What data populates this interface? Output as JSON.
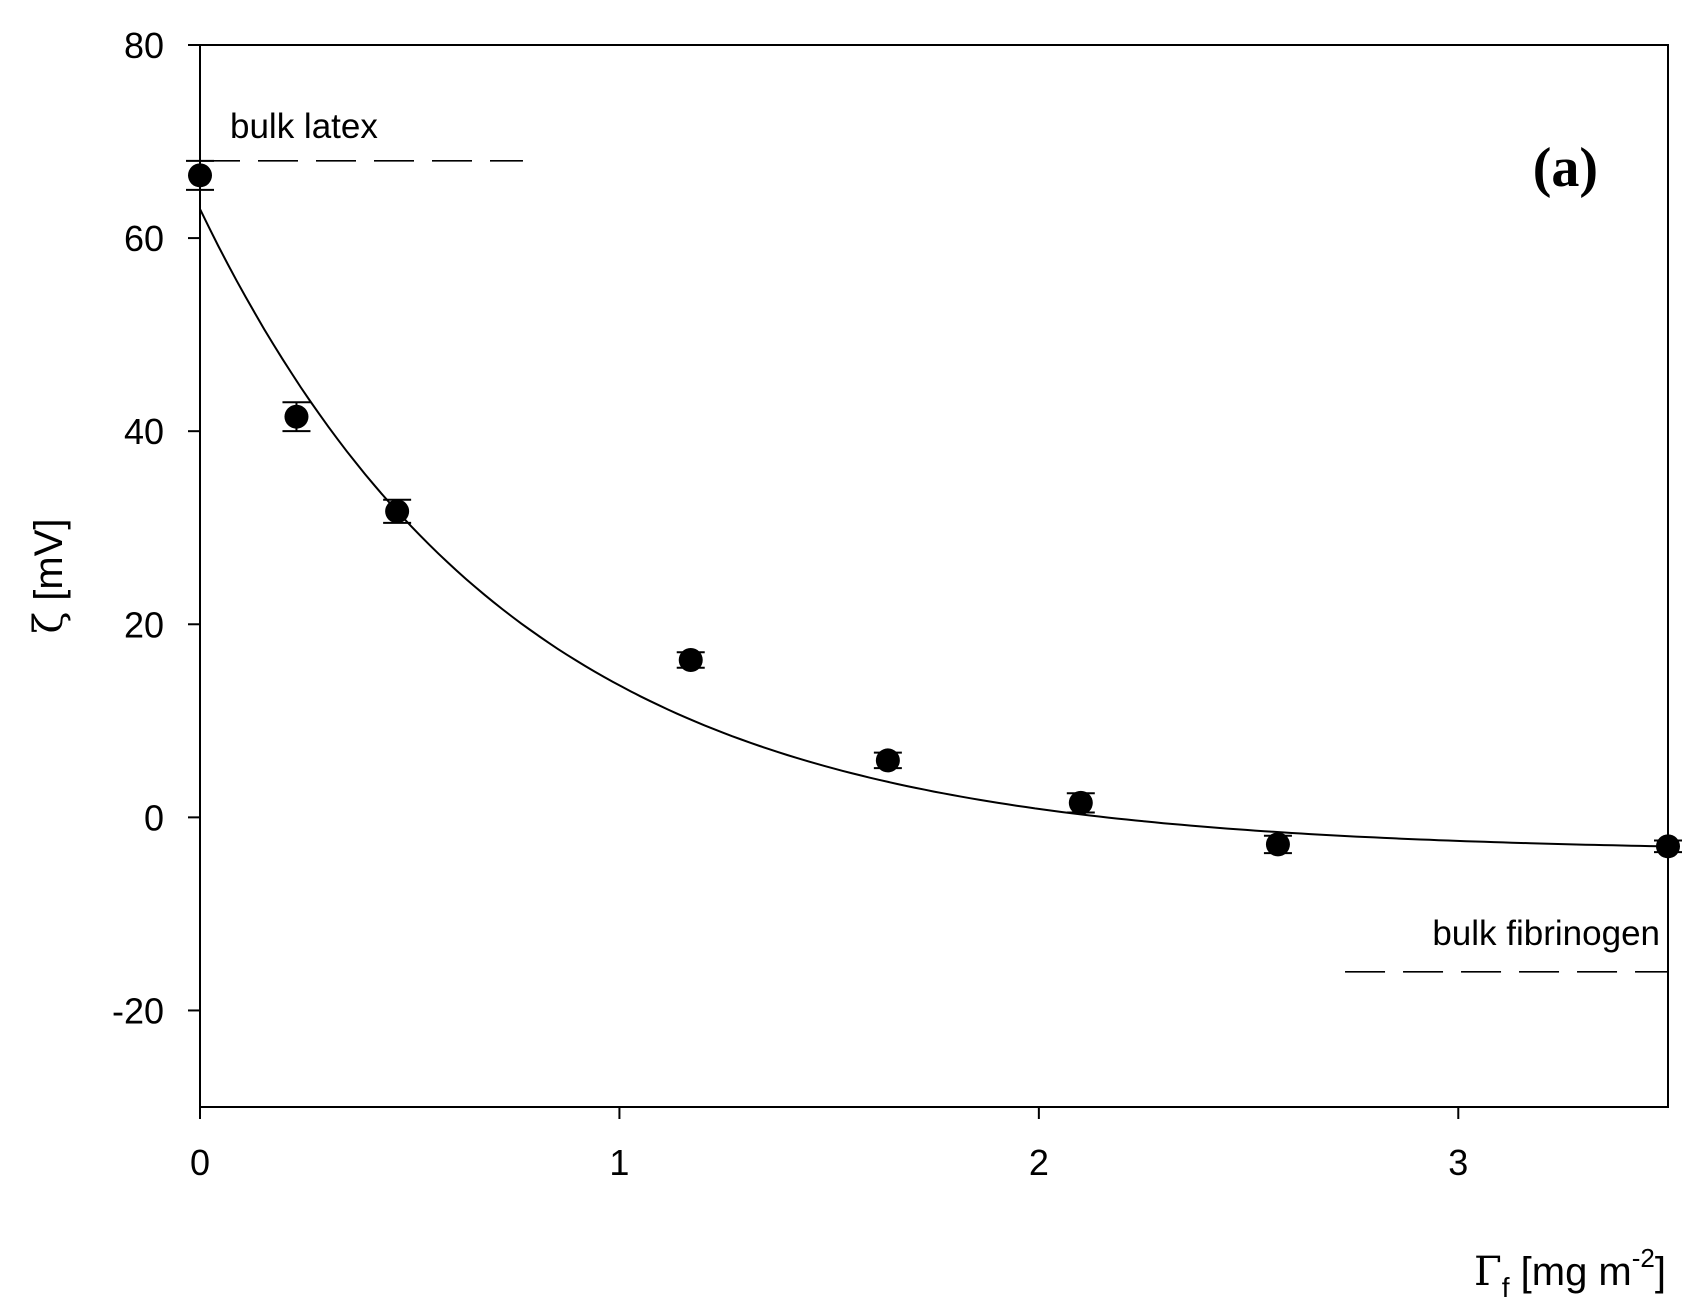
{
  "chart_data": {
    "type": "scatter",
    "title": "",
    "panel_label": "(a)",
    "xlabel": {
      "symbol": "Γ",
      "subscript": "f",
      "text": " [mg m",
      "superscript": "-2",
      "suffix": "]"
    },
    "ylabel": {
      "symbol": "ζ",
      "text": " [mV]"
    },
    "xlim": [
      0,
      3.5
    ],
    "ylim": [
      -30,
      80
    ],
    "xticks": [
      0,
      1,
      2,
      3
    ],
    "xtick_labels": [
      "0",
      "1",
      "2",
      "3"
    ],
    "yticks": [
      -20,
      0,
      20,
      40,
      60,
      80
    ],
    "ytick_labels": [
      "-20",
      "0",
      "20",
      "40",
      "60",
      "80"
    ],
    "grid": false,
    "series": [
      {
        "kind": "points_with_error",
        "x": [
          0.0,
          0.23,
          0.47,
          1.17,
          1.64,
          2.1,
          2.57,
          3.5
        ],
        "y": [
          66.5,
          41.5,
          31.7,
          16.3,
          5.9,
          1.5,
          -2.8,
          -3.0
        ],
        "yerr": [
          1.5,
          1.5,
          1.2,
          0.8,
          0.8,
          1.0,
          0.9,
          0.6
        ]
      },
      {
        "kind": "fit_line",
        "model": "exponential",
        "x_range": [
          0,
          3.5
        ],
        "y_inf": -3.6,
        "amplitude": 66.6,
        "decay": 1.35
      }
    ],
    "reference_lines": [
      {
        "label": "bulk latex",
        "y": 68,
        "x_range": [
          0,
          0.77
        ]
      },
      {
        "label": "bulk fibrinogen",
        "y": -16,
        "x_range": [
          2.73,
          3.5
        ]
      }
    ]
  }
}
